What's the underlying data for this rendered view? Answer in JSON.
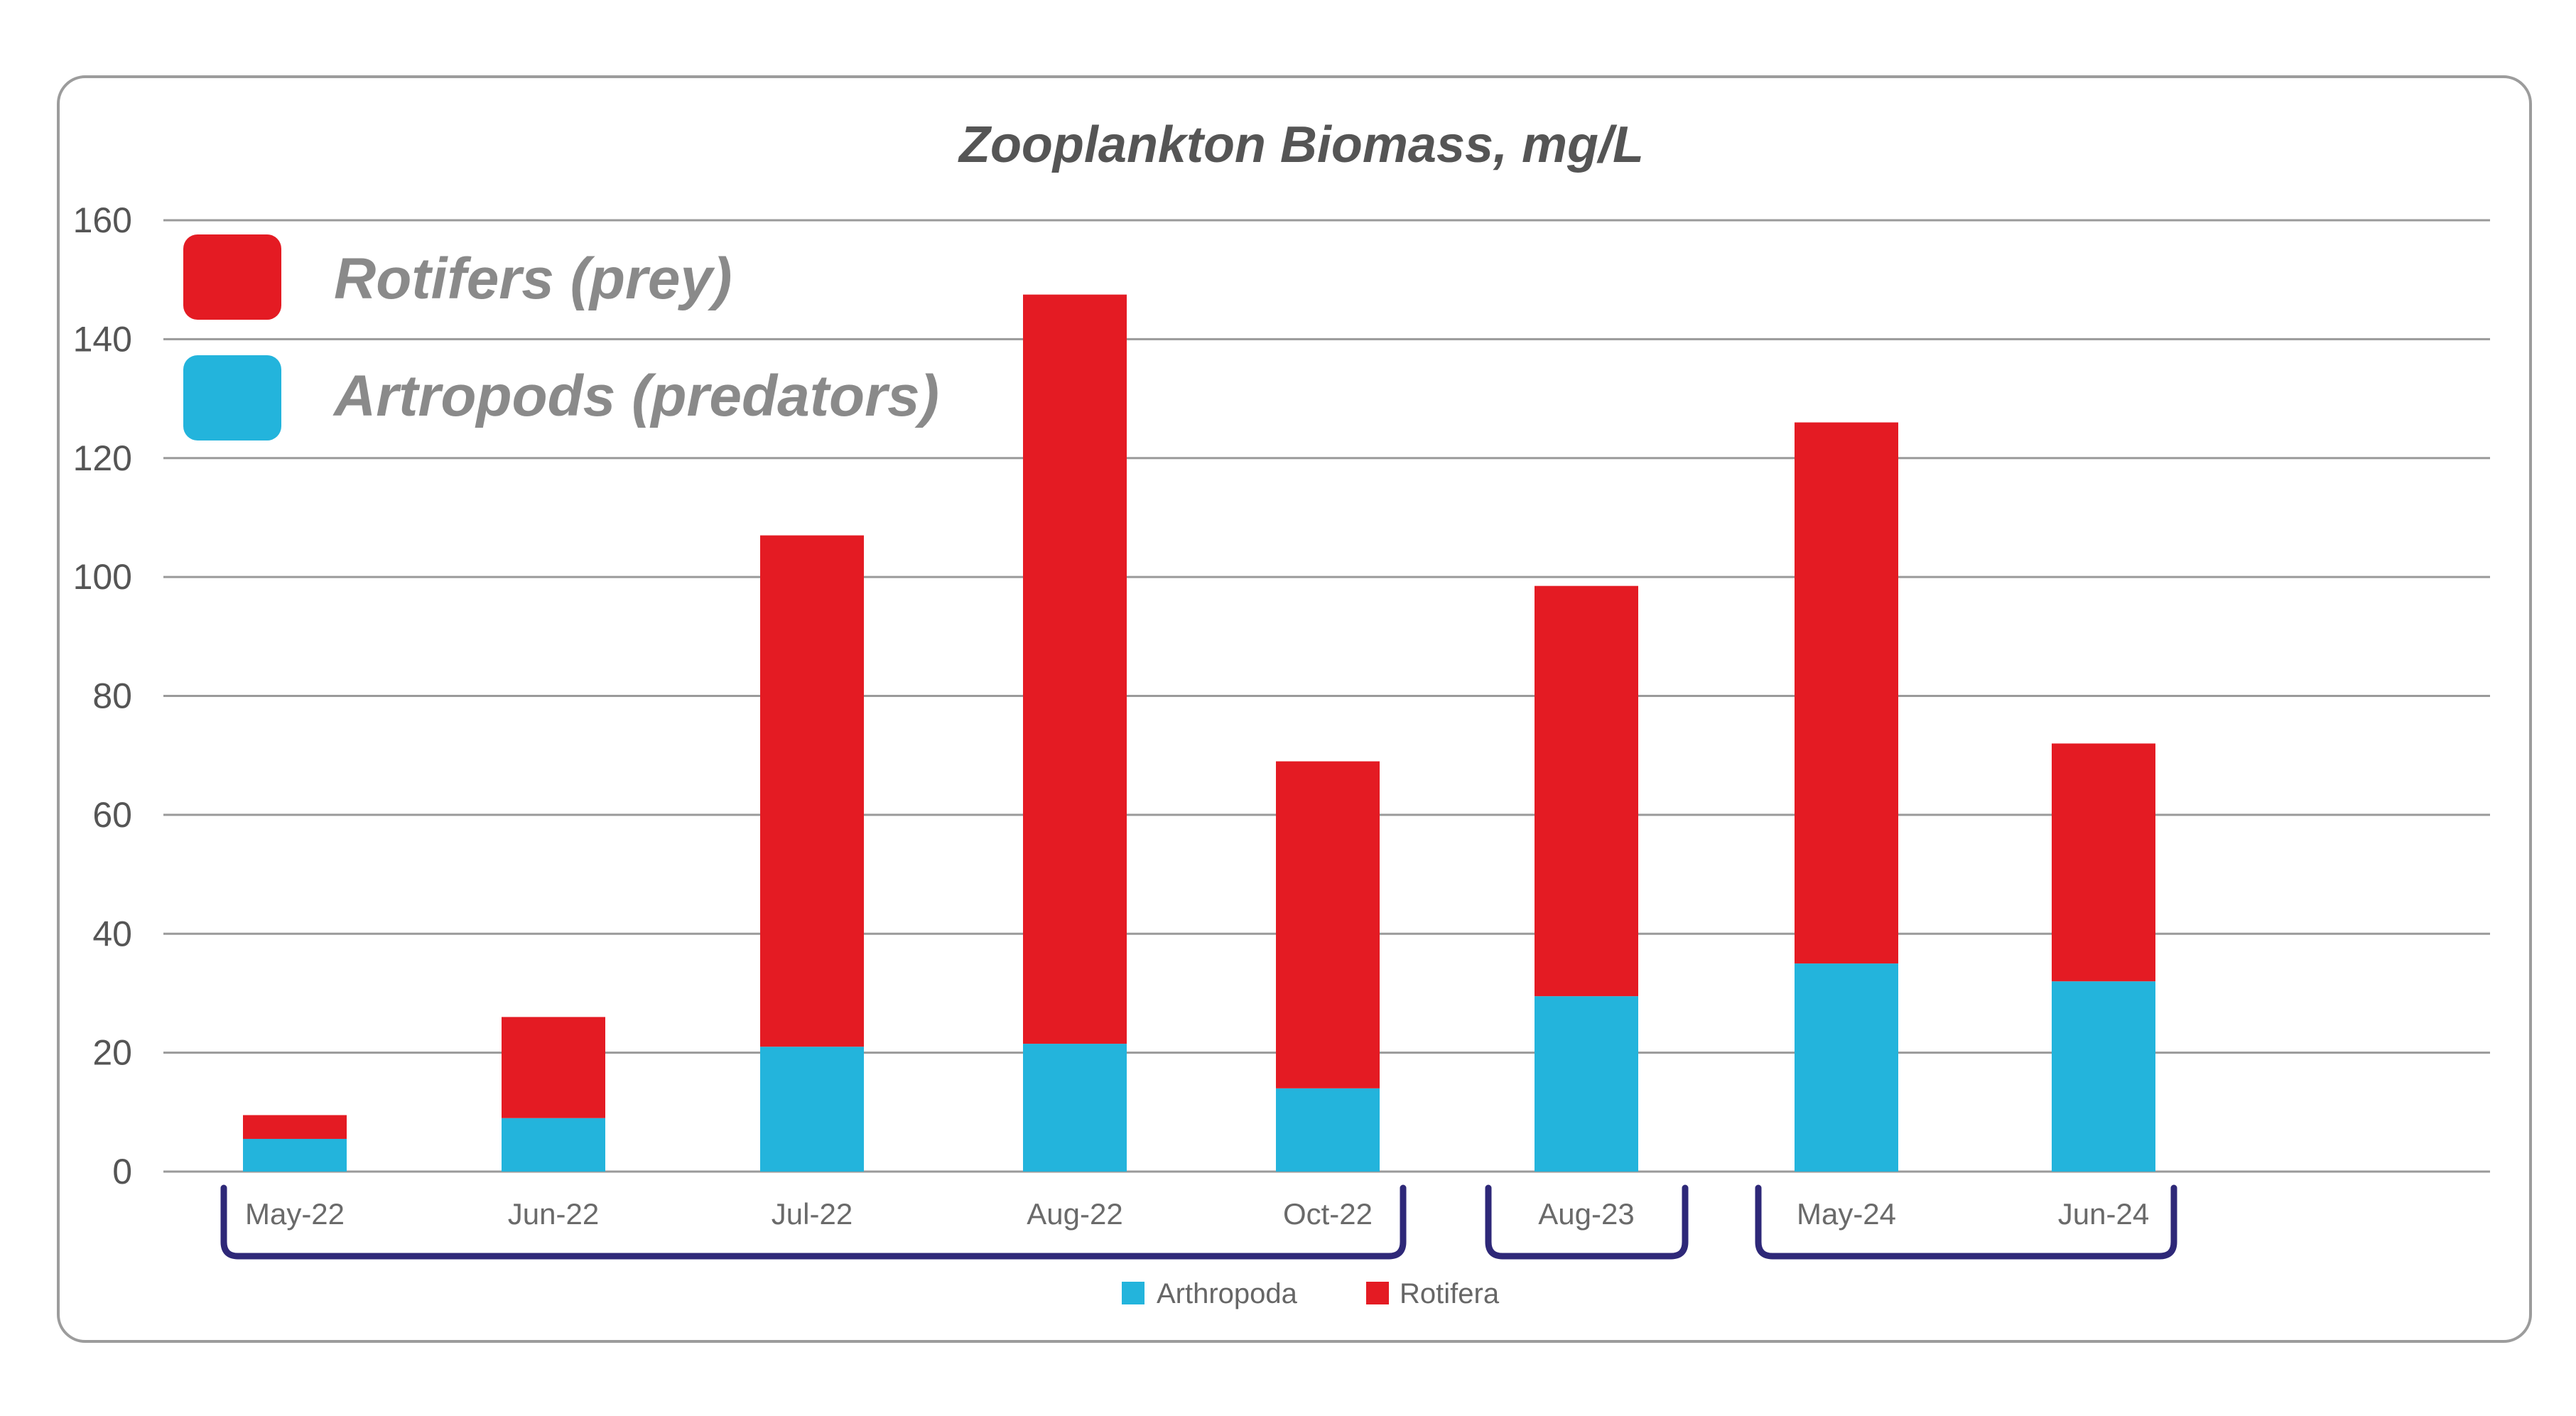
{
  "chart_data": {
    "type": "bar",
    "stacked": true,
    "title": "Zooplankton Biomass, mg/L",
    "categories": [
      "May-22",
      "Jun-22",
      "Jul-22",
      "Aug-22",
      "Oct-22",
      "Aug-23",
      "May-24",
      "Jun-24"
    ],
    "series": [
      {
        "name": "Arthropoda",
        "color": "#23b4dc",
        "values": [
          5.5,
          9,
          21,
          21.5,
          14,
          29.5,
          35,
          32
        ]
      },
      {
        "name": "Rotifera",
        "color": "#e41b23",
        "values": [
          4,
          17,
          86,
          126,
          55,
          69,
          91,
          40
        ]
      }
    ],
    "ylim": [
      0,
      160
    ],
    "yticks": [
      "0",
      "20",
      "40",
      "60",
      "80",
      "100",
      "120",
      "140",
      "160"
    ],
    "grid": true,
    "legend": {
      "position": "bottom-center",
      "entries": [
        "Arthropoda",
        "Rotifera"
      ]
    },
    "annotation_legend": {
      "position": "top-left",
      "entries": [
        {
          "label": "Rotifers (prey)",
          "color": "#e41b23"
        },
        {
          "label": "Artropods (predators)",
          "color": "#23b4dc"
        }
      ]
    },
    "year_groups": [
      {
        "categories": [
          "May-22",
          "Jun-22",
          "Jul-22",
          "Aug-22",
          "Oct-22"
        ]
      },
      {
        "categories": [
          "Aug-23"
        ]
      },
      {
        "categories": [
          "May-24",
          "Jun-24"
        ]
      }
    ]
  },
  "colors": {
    "frame": "#9c9c9c",
    "bracket": "#2e2878",
    "rotifera": "#e41b23",
    "arthropoda": "#23b4dc"
  }
}
